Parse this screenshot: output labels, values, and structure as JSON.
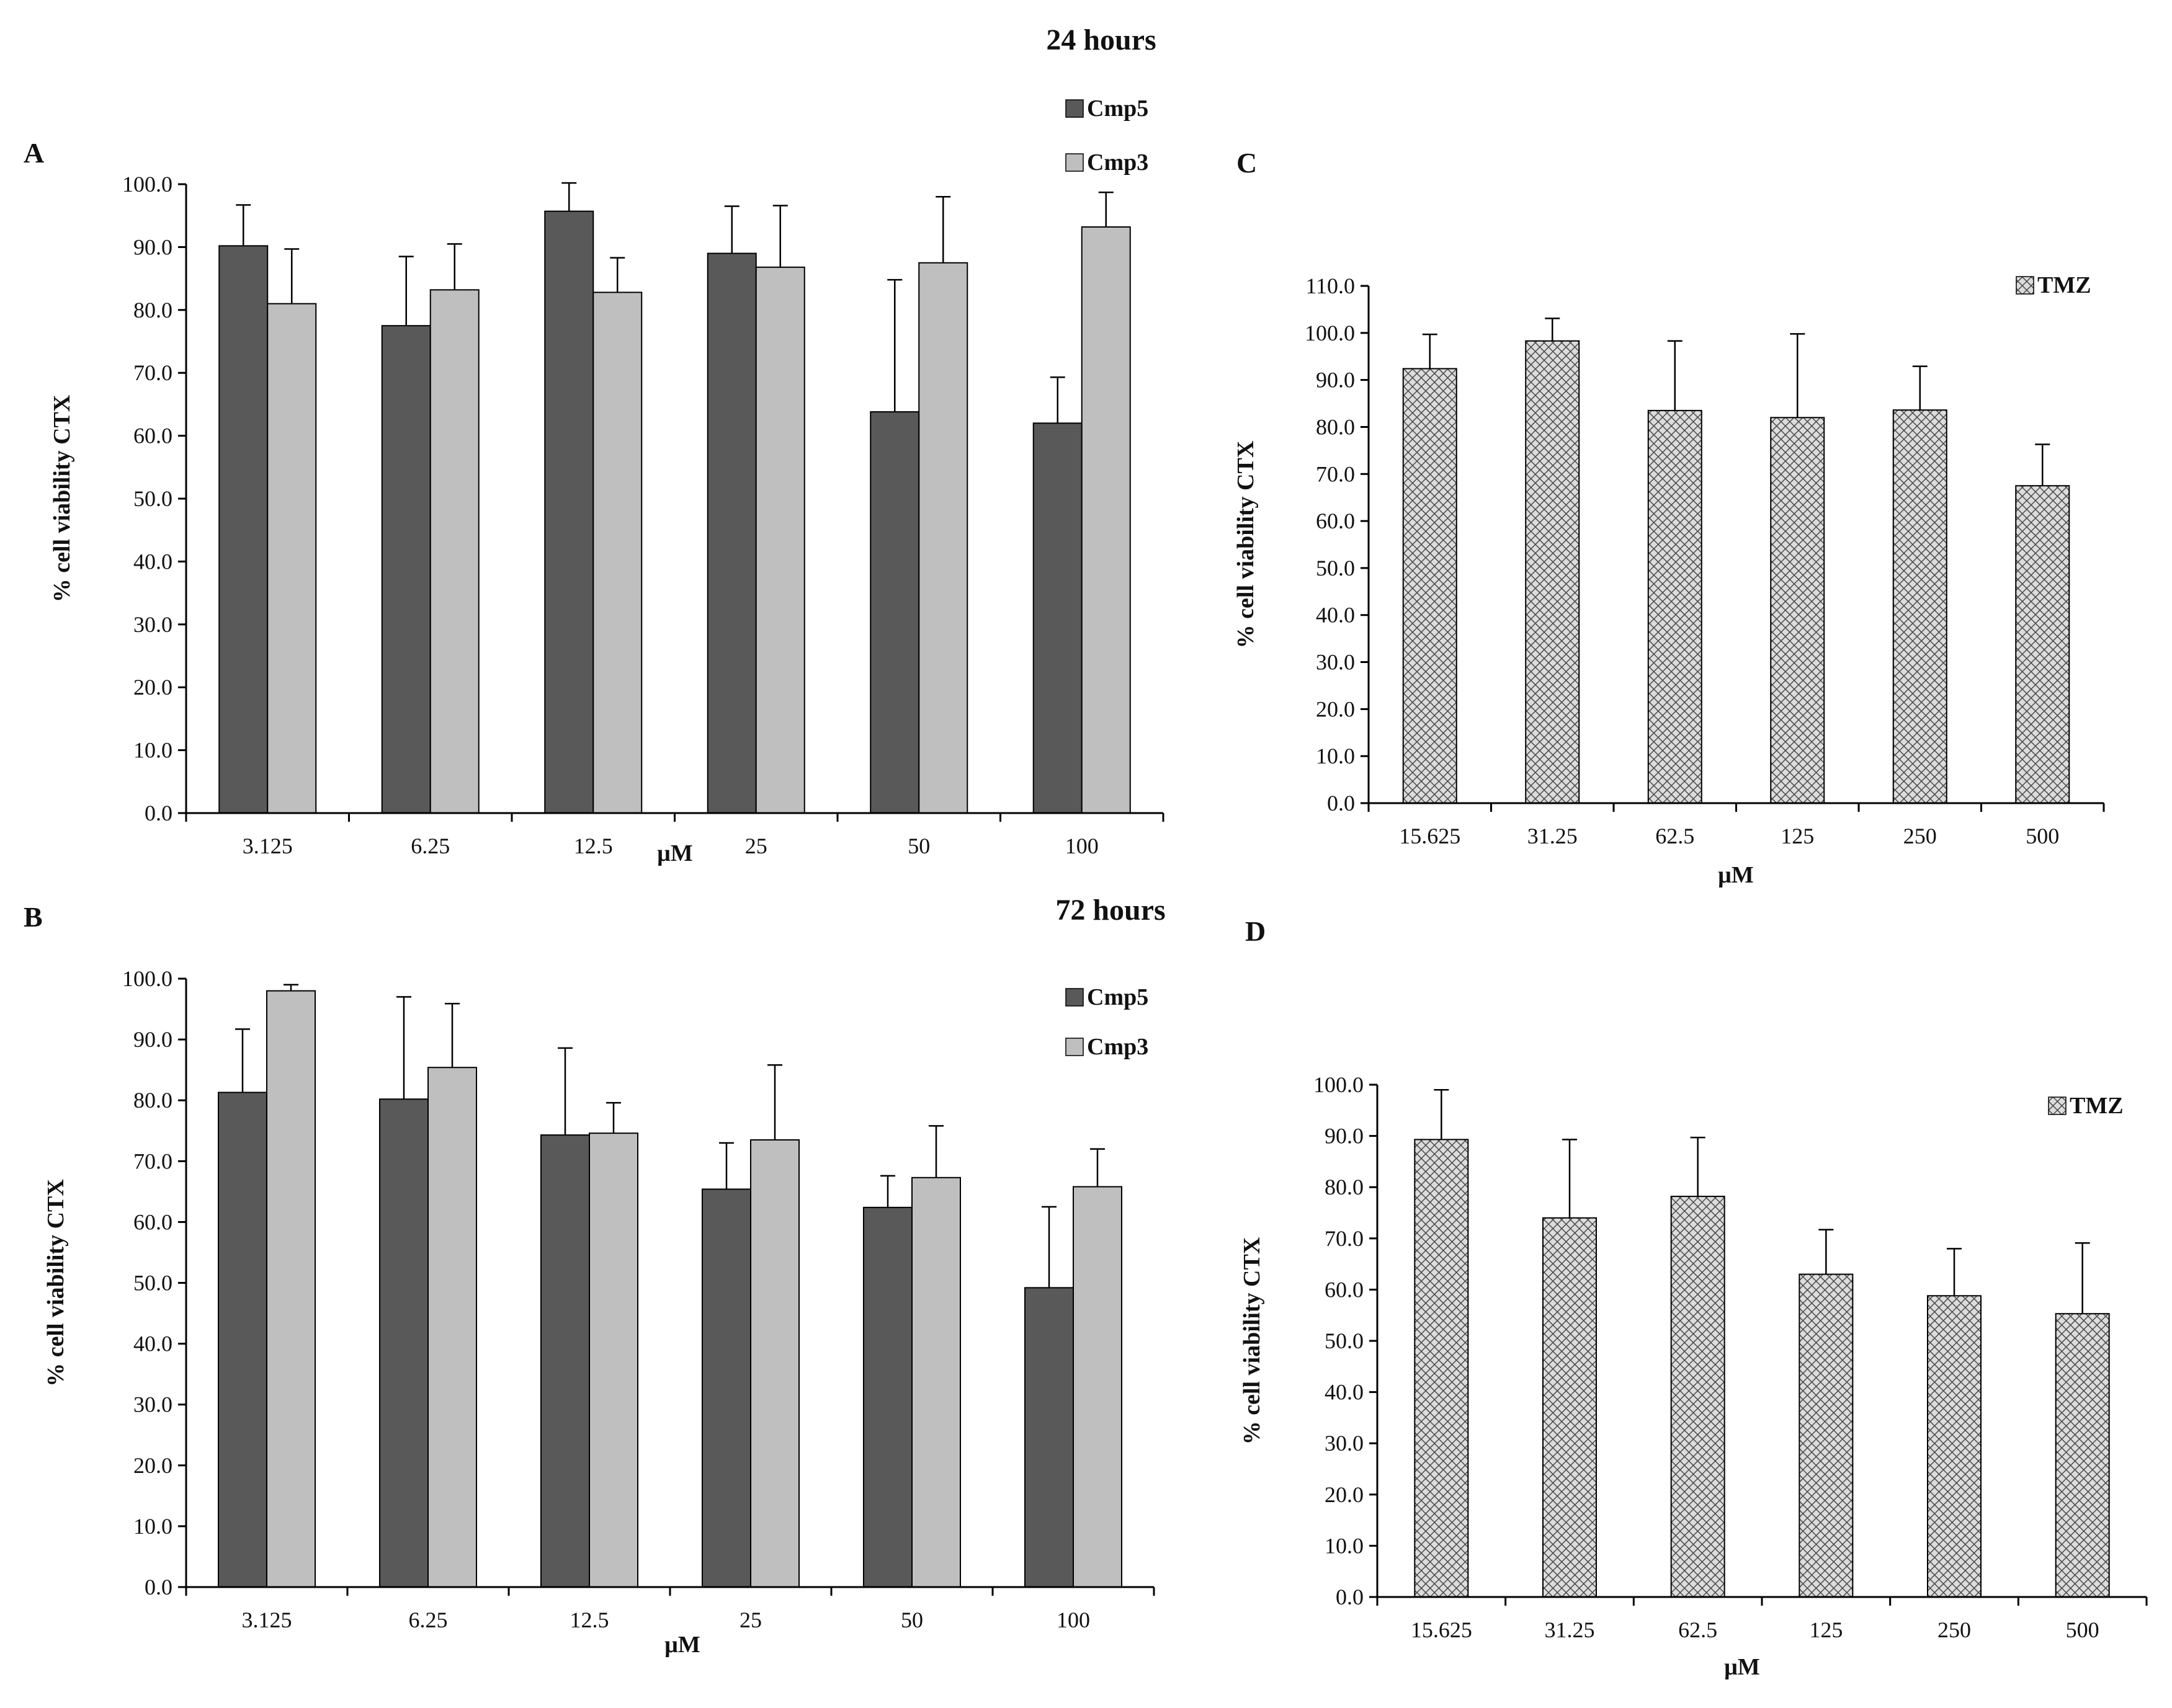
{
  "figure": {
    "titles": {
      "top": "24 hours",
      "bottom": "72 hours"
    },
    "colors": {
      "cmp5": "#595959",
      "cmp3": "#bfbfbf",
      "tmz_bg": "#d9d9d9",
      "tmz_line": "#4a4a4a",
      "axis": "#000000"
    }
  },
  "chart_data": [
    {
      "panel": "A",
      "type": "bar",
      "ylabel": "% cell viability  CTX",
      "xlabel": "μM",
      "ylim": [
        0,
        100
      ],
      "ytick_step": 10,
      "categories": [
        "3.125",
        "6.25",
        "12.5",
        "25",
        "50",
        "100"
      ],
      "series": [
        {
          "name": "Cmp5",
          "values": [
            90.2,
            77.5,
            95.7,
            89.0,
            63.8,
            62.0
          ],
          "errors": [
            6.5,
            11.0,
            4.5,
            7.5,
            21.0,
            7.3
          ]
        },
        {
          "name": "Cmp3",
          "values": [
            81.0,
            83.2,
            82.8,
            86.8,
            87.5,
            93.2
          ],
          "errors": [
            8.7,
            7.3,
            5.5,
            9.8,
            10.5,
            5.5
          ]
        }
      ],
      "legend": [
        "Cmp5",
        "Cmp3"
      ]
    },
    {
      "panel": "B",
      "type": "bar",
      "ylabel": "% cell viability  CTX",
      "xlabel": "μM",
      "ylim": [
        0,
        100
      ],
      "ytick_step": 10,
      "categories": [
        "3.125",
        "6.25",
        "12.5",
        "25",
        "50",
        "100"
      ],
      "series": [
        {
          "name": "Cmp5",
          "values": [
            81.3,
            80.2,
            74.3,
            65.4,
            62.4,
            49.2
          ],
          "errors": [
            10.4,
            16.8,
            14.3,
            7.6,
            5.2,
            13.3
          ]
        },
        {
          "name": "Cmp3",
          "values": [
            98.0,
            85.4,
            74.6,
            73.5,
            67.3,
            65.8
          ],
          "errors": [
            1.0,
            10.5,
            5.0,
            12.3,
            8.5,
            6.2
          ]
        }
      ],
      "legend": [
        "Cmp5",
        "Cmp3"
      ]
    },
    {
      "panel": "C",
      "type": "bar",
      "ylabel": "% cell viability  CTX",
      "xlabel": "μM",
      "ylim": [
        0,
        110
      ],
      "ytick_step": 10,
      "categories": [
        "15.625",
        "31.25",
        "62.5",
        "125",
        "250",
        "500"
      ],
      "series": [
        {
          "name": "TMZ",
          "values": [
            92.4,
            98.3,
            83.5,
            82.0,
            83.6,
            67.5
          ],
          "errors": [
            7.3,
            4.8,
            14.8,
            17.8,
            9.3,
            8.8
          ]
        }
      ],
      "legend": [
        "TMZ"
      ]
    },
    {
      "panel": "D",
      "type": "bar",
      "ylabel": "% cell viability  CTX",
      "xlabel": "μM",
      "ylim": [
        0,
        100
      ],
      "ytick_step": 10,
      "categories": [
        "15.625",
        "31.25",
        "62.5",
        "125",
        "250",
        "500"
      ],
      "series": [
        {
          "name": "TMZ",
          "values": [
            89.3,
            74.0,
            78.2,
            63.0,
            58.8,
            55.3
          ],
          "errors": [
            9.7,
            15.3,
            11.5,
            8.7,
            9.2,
            13.8
          ]
        }
      ],
      "legend": [
        "TMZ"
      ]
    }
  ]
}
